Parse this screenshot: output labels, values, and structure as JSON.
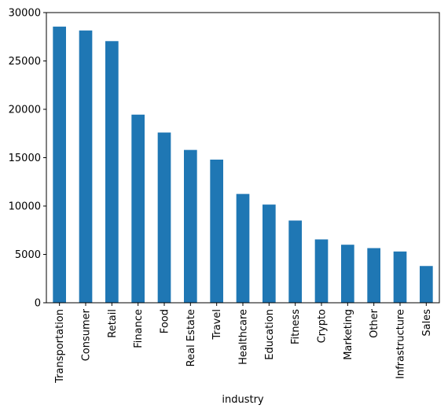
{
  "chart_data": {
    "type": "bar",
    "title": "",
    "xlabel": "industry",
    "ylabel": "",
    "categories": [
      "Transportation",
      "Consumer",
      "Retail",
      "Finance",
      "Food",
      "Real Estate",
      "Travel",
      "Healthcare",
      "Education",
      "Fitness",
      "Crypto",
      "Marketing",
      "Other",
      "Infrastructure",
      "Sales"
    ],
    "values": [
      28550,
      28150,
      27050,
      19450,
      17600,
      15800,
      14800,
      11250,
      10150,
      8500,
      6550,
      6000,
      5650,
      5300,
      3800
    ],
    "ylim": [
      0,
      30000
    ],
    "yticks": [
      0,
      5000,
      10000,
      15000,
      20000,
      25000,
      30000
    ],
    "grid": false,
    "legend": "none",
    "bar_color": "#1f77b4"
  }
}
